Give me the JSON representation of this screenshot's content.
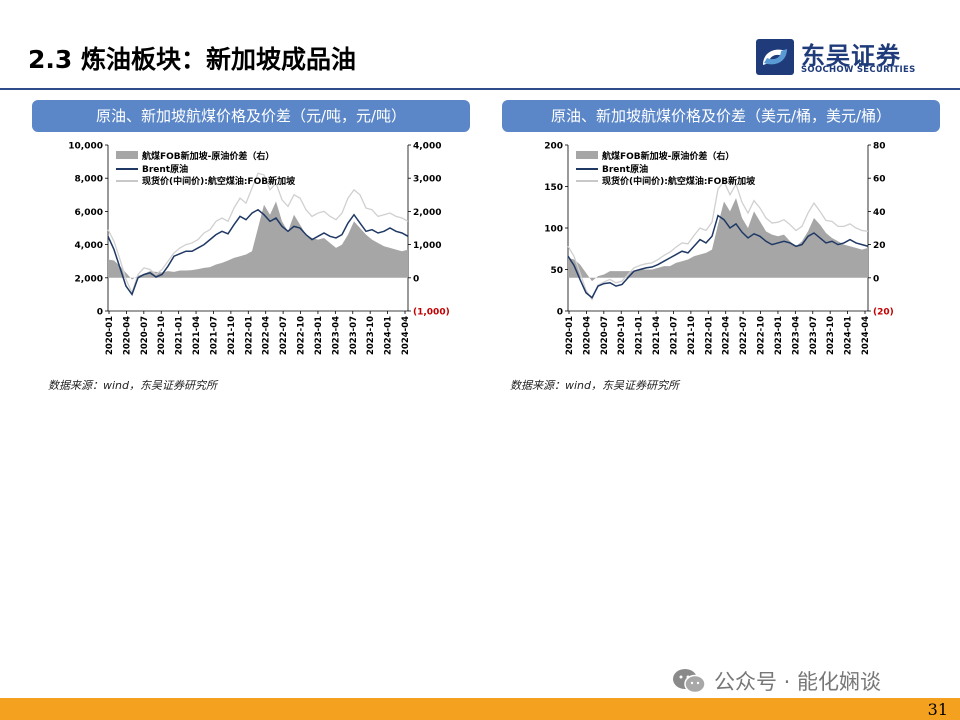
{
  "page": {
    "title": "2.3 炼油板块：新加坡成品油",
    "logo_cn": "东吴证券",
    "logo_en": "SOOCHOW SECURITIES",
    "page_number": "31",
    "watermark": "公众号 · 能化娴谈"
  },
  "colors": {
    "accent": "#2f4c8a",
    "panel_header": "#5b87c9",
    "footer": "#f4a11f",
    "spread_fill": "#a6a6a6",
    "brent_line": "#1f3864",
    "spot_line": "#d0d0d0"
  },
  "chart_data": [
    {
      "type": "area",
      "title": "原油、新加坡航煤价格及价差（元/吨，元/吨）",
      "source": "数据来源：wind，东吴证券研究所",
      "x_ticks": [
        "2020-01",
        "2020-04",
        "2020-07",
        "2020-10",
        "2021-01",
        "2021-04",
        "2021-07",
        "2021-10",
        "2022-01",
        "2022-04",
        "2022-07",
        "2022-10",
        "2023-01",
        "2023-04",
        "2023-07",
        "2023-10",
        "2024-01",
        "2024-04"
      ],
      "y_left": {
        "min": 0,
        "max": 10000,
        "ticks": [
          0,
          2000,
          4000,
          6000,
          8000,
          10000
        ],
        "tick_labels": [
          "0",
          "2,000",
          "4,000",
          "6,000",
          "8,000",
          "10,000"
        ]
      },
      "y_right": {
        "min": -1000,
        "max": 4000,
        "ticks": [
          -1000,
          0,
          1000,
          2000,
          3000,
          4000
        ],
        "tick_labels": [
          "(1,000)",
          "0",
          "1,000",
          "2,000",
          "3,000",
          "4,000"
        ]
      },
      "legend": [
        "航煤FOB新加坡-原油价差（右）",
        "Brent原油",
        "现货价(中间价):航空煤油:FOB新加坡"
      ],
      "series": [
        {
          "name": "航煤FOB新加坡-原油价差（右）",
          "axis": "right",
          "values": [
            550,
            520,
            350,
            150,
            -50,
            60,
            120,
            200,
            180,
            160,
            200,
            180,
            220,
            220,
            230,
            260,
            300,
            320,
            400,
            450,
            520,
            600,
            650,
            700,
            800,
            1500,
            2200,
            1900,
            2300,
            1700,
            1400,
            1900,
            1600,
            1300,
            1200,
            1150,
            1200,
            1050,
            900,
            1000,
            1300,
            1700,
            1500,
            1300,
            1150,
            1050,
            950,
            900,
            850,
            800,
            850
          ]
        },
        {
          "name": "Brent原油",
          "axis": "left",
          "values": [
            4500,
            3700,
            2600,
            1500,
            1000,
            2000,
            2200,
            2300,
            2050,
            2200,
            2700,
            3300,
            3450,
            3600,
            3600,
            3800,
            4000,
            4300,
            4600,
            4800,
            4650,
            5200,
            5700,
            5500,
            5900,
            6100,
            5800,
            5400,
            5600,
            5100,
            4800,
            5100,
            5000,
            4600,
            4300,
            4500,
            4700,
            4500,
            4400,
            4600,
            5300,
            5800,
            5300,
            4800,
            4900,
            4700,
            4800,
            5000,
            4800,
            4700,
            4500
          ]
        },
        {
          "name": "现货价(中间价):航空煤油:FOB新加坡",
          "axis": "left",
          "values": [
            4900,
            4200,
            3100,
            1900,
            1100,
            2200,
            2600,
            2500,
            2200,
            2500,
            3000,
            3500,
            3800,
            4000,
            4100,
            4300,
            4700,
            4900,
            5400,
            5600,
            5400,
            6200,
            6800,
            6500,
            7400,
            8300,
            8200,
            7300,
            7700,
            6700,
            6300,
            7000,
            6800,
            6100,
            5700,
            5900,
            6000,
            5700,
            5500,
            5900,
            6800,
            7300,
            7000,
            6200,
            6100,
            5700,
            5800,
            5900,
            5700,
            5600,
            5400
          ]
        }
      ]
    },
    {
      "type": "area",
      "title": "原油、新加坡航煤价格及价差（美元/桶，美元/桶）",
      "source": "数据来源：wind，东吴证券研究所",
      "x_ticks": [
        "2020-01",
        "2020-04",
        "2020-07",
        "2020-10",
        "2021-01",
        "2021-04",
        "2021-07",
        "2021-10",
        "2022-01",
        "2022-04",
        "2022-07",
        "2022-10",
        "2023-01",
        "2023-04",
        "2023-07",
        "2023-10",
        "2024-01",
        "2024-04"
      ],
      "y_left": {
        "min": 0,
        "max": 200,
        "ticks": [
          0,
          50,
          100,
          150,
          200
        ],
        "tick_labels": [
          "0",
          "50",
          "100",
          "150",
          "200"
        ]
      },
      "y_right": {
        "min": -20,
        "max": 80,
        "ticks": [
          -20,
          0,
          20,
          40,
          60,
          80
        ],
        "tick_labels": [
          "(20)",
          "0",
          "20",
          "40",
          "60",
          "80"
        ]
      },
      "legend": [
        "航煤FOB新加坡-原油价差（右）",
        "Brent原油",
        "现货价(中间价):航空煤油:FOB新加坡"
      ],
      "series": [
        {
          "name": "航煤FOB新加坡-原油价差（右）",
          "axis": "right",
          "values": [
            12,
            11,
            8,
            3,
            -2,
            1,
            2,
            4,
            4,
            4,
            4,
            4,
            5,
            5,
            5,
            6,
            7,
            7,
            9,
            10,
            11,
            13,
            14,
            15,
            17,
            32,
            46,
            40,
            48,
            36,
            30,
            40,
            34,
            28,
            26,
            25,
            26,
            22,
            19,
            22,
            28,
            36,
            32,
            27,
            24,
            22,
            20,
            19,
            18,
            17,
            18
          ]
        },
        {
          "name": "Brent原油",
          "axis": "left",
          "values": [
            66,
            55,
            38,
            22,
            16,
            30,
            33,
            34,
            30,
            32,
            40,
            48,
            50,
            52,
            53,
            56,
            60,
            64,
            68,
            72,
            70,
            78,
            86,
            82,
            90,
            115,
            110,
            100,
            105,
            95,
            88,
            93,
            90,
            84,
            80,
            82,
            84,
            82,
            78,
            80,
            90,
            94,
            88,
            82,
            84,
            80,
            82,
            86,
            82,
            80,
            78
          ]
        },
        {
          "name": "现货价(中间价):航空煤油:FOB新加坡",
          "axis": "left",
          "values": [
            78,
            66,
            46,
            25,
            14,
            31,
            35,
            38,
            34,
            36,
            44,
            52,
            55,
            57,
            58,
            62,
            67,
            71,
            77,
            82,
            81,
            91,
            100,
            97,
            107,
            147,
            156,
            140,
            153,
            131,
            118,
            133,
            124,
            112,
            106,
            107,
            110,
            104,
            97,
            102,
            118,
            130,
            120,
            109,
            108,
            102,
            102,
            105,
            100,
            97,
            96
          ]
        }
      ]
    }
  ]
}
